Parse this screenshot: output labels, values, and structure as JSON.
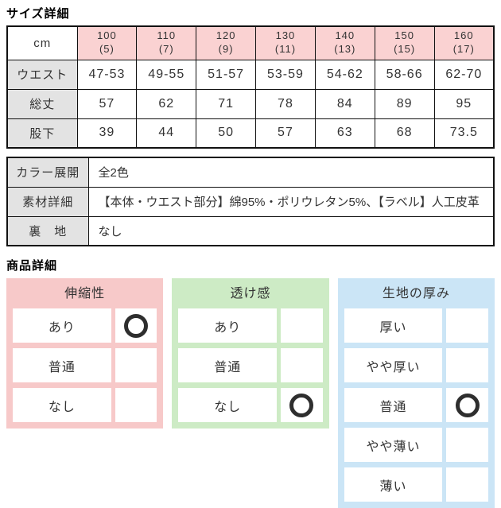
{
  "sections": {
    "size_title": "サイズ詳細",
    "product_title": "商品詳細"
  },
  "colors": {
    "size_header_pink": "#fad2d2",
    "label_gray": "#e3e3e3",
    "table_border": "#111111",
    "stretch_frame_pink": "#f7c9c9",
    "sheerness_frame_green": "#cdebc5",
    "thickness_frame_blue": "#cbe5f6",
    "circle_mark": "#2e2e2e"
  },
  "size_table": {
    "corner_label": "cm",
    "columns": [
      {
        "size": "100",
        "sub": "(5)"
      },
      {
        "size": "110",
        "sub": "(7)"
      },
      {
        "size": "120",
        "sub": "(9)"
      },
      {
        "size": "130",
        "sub": "(11)"
      },
      {
        "size": "140",
        "sub": "(13)"
      },
      {
        "size": "150",
        "sub": "(15)"
      },
      {
        "size": "160",
        "sub": "(17)"
      }
    ],
    "rows": [
      {
        "label": "ウエスト",
        "values": [
          "47-53",
          "49-55",
          "51-57",
          "53-59",
          "54-62",
          "58-66",
          "62-70"
        ]
      },
      {
        "label": "総丈",
        "values": [
          "57",
          "62",
          "71",
          "78",
          "84",
          "89",
          "95"
        ]
      },
      {
        "label": "股下",
        "values": [
          "39",
          "44",
          "50",
          "57",
          "63",
          "68",
          "73.5"
        ]
      }
    ]
  },
  "detail_table": {
    "rows": [
      {
        "label": "カラー展開",
        "value": "全2色"
      },
      {
        "label": "素材詳細",
        "value": "【本体・ウエスト部分】綿95%・ポリウレタン5%、【ラベル】人工皮革"
      },
      {
        "label": "裏　地",
        "value": "なし"
      }
    ]
  },
  "product_tables": [
    {
      "name": "stretch",
      "title": "伸縮性",
      "frame_color": "#f7c9c9",
      "rows": [
        {
          "label": "あり",
          "selected": true
        },
        {
          "label": "普通",
          "selected": false
        },
        {
          "label": "なし",
          "selected": false
        }
      ]
    },
    {
      "name": "sheerness",
      "title": "透け感",
      "frame_color": "#cdebc5",
      "rows": [
        {
          "label": "あり",
          "selected": false
        },
        {
          "label": "普通",
          "selected": false
        },
        {
          "label": "なし",
          "selected": true
        }
      ]
    },
    {
      "name": "thickness",
      "title": "生地の厚み",
      "frame_color": "#cbe5f6",
      "rows": [
        {
          "label": "厚い",
          "selected": false
        },
        {
          "label": "やや厚い",
          "selected": false
        },
        {
          "label": "普通",
          "selected": true
        },
        {
          "label": "やや薄い",
          "selected": false
        },
        {
          "label": "薄い",
          "selected": false
        }
      ]
    }
  ],
  "selected_marker_name": "circle-mark"
}
